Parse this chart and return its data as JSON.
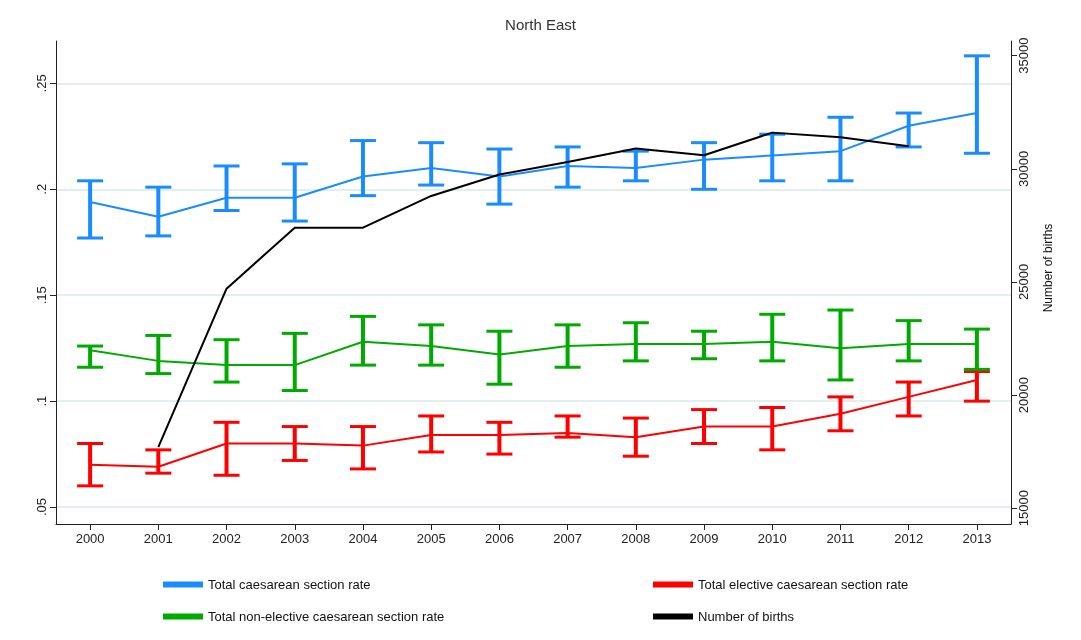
{
  "chart_data": {
    "type": "line",
    "title": "North East",
    "y2label": "Number of births",
    "categories": [
      "2000",
      "2001",
      "2002",
      "2003",
      "2004",
      "2005",
      "2006",
      "2007",
      "2008",
      "2009",
      "2010",
      "2011",
      "2012",
      "2013"
    ],
    "series": [
      {
        "name": "Total caesarean section rate",
        "color": "#1a8cff",
        "values": [
          0.194,
          0.187,
          0.196,
          0.196,
          0.206,
          0.21,
          0.206,
          0.211,
          0.21,
          0.214,
          0.216,
          0.218,
          0.23,
          0.236
        ],
        "errors": [
          [
            0.177,
            0.204
          ],
          [
            0.178,
            0.201
          ],
          [
            0.19,
            0.211
          ],
          [
            0.185,
            0.212
          ],
          [
            0.197,
            0.223
          ],
          [
            0.202,
            0.222
          ],
          [
            0.193,
            0.219
          ],
          [
            0.201,
            0.22
          ],
          [
            0.204,
            0.218
          ],
          [
            0.2,
            0.222
          ],
          [
            0.204,
            0.226
          ],
          [
            0.204,
            0.234
          ],
          [
            0.22,
            0.236
          ],
          [
            0.217,
            0.263
          ]
        ]
      },
      {
        "name": "Total elective caesarean section rate",
        "color": "#ff0000",
        "values": [
          0.07,
          0.069,
          0.08,
          0.08,
          0.079,
          0.084,
          0.084,
          0.085,
          0.083,
          0.088,
          0.088,
          0.094,
          0.102,
          0.11
        ],
        "errors": [
          [
            0.06,
            0.08
          ],
          [
            0.066,
            0.077
          ],
          [
            0.065,
            0.09
          ],
          [
            0.072,
            0.088
          ],
          [
            0.068,
            0.088
          ],
          [
            0.076,
            0.093
          ],
          [
            0.075,
            0.09
          ],
          [
            0.083,
            0.093
          ],
          [
            0.074,
            0.092
          ],
          [
            0.08,
            0.096
          ],
          [
            0.077,
            0.097
          ],
          [
            0.086,
            0.102
          ],
          [
            0.093,
            0.109
          ],
          [
            0.1,
            0.114
          ]
        ]
      },
      {
        "name": "Total non-elective caesarean section rate",
        "color": "#00aa00",
        "values": [
          0.124,
          0.119,
          0.117,
          0.117,
          0.128,
          0.126,
          0.122,
          0.126,
          0.127,
          0.127,
          0.128,
          0.125,
          0.127,
          0.127
        ],
        "errors": [
          [
            0.116,
            0.126
          ],
          [
            0.113,
            0.131
          ],
          [
            0.109,
            0.129
          ],
          [
            0.105,
            0.132
          ],
          [
            0.117,
            0.14
          ],
          [
            0.117,
            0.136
          ],
          [
            0.108,
            0.133
          ],
          [
            0.116,
            0.136
          ],
          [
            0.119,
            0.137
          ],
          [
            0.12,
            0.133
          ],
          [
            0.119,
            0.141
          ],
          [
            0.11,
            0.143
          ],
          [
            0.119,
            0.138
          ],
          [
            0.115,
            0.134
          ]
        ]
      },
      {
        "name": "Number of births",
        "color": "#000000",
        "axis": "y2",
        "values": [
          null,
          17700,
          24700,
          27400,
          27400,
          28800,
          29750,
          30300,
          30900,
          30600,
          31600,
          31400,
          31000,
          null
        ]
      }
    ],
    "ylim": [
      0.042,
      0.27
    ],
    "yticks": [
      {
        "value": 0.05,
        "label": ".05"
      },
      {
        "value": 0.1,
        "label": ".1"
      },
      {
        "value": 0.15,
        "label": ".15"
      },
      {
        "value": 0.2,
        "label": ".2"
      },
      {
        "value": 0.25,
        "label": ".25"
      }
    ],
    "y2lim": [
      14300,
      35650
    ],
    "y2ticks": [
      15000,
      20000,
      25000,
      30000,
      35000
    ],
    "grid": "y",
    "legend": "bottom",
    "marker": "none",
    "line_style": "solid"
  }
}
